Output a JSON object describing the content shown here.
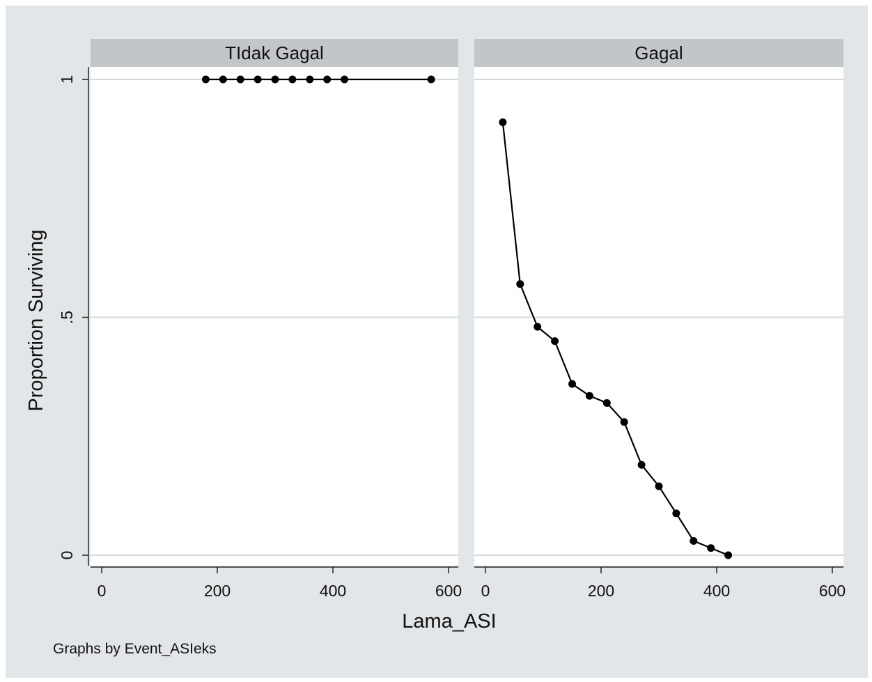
{
  "chart_data": {
    "type": "line",
    "ylabel": "Proportion Surviving",
    "xlabel": "Lama_ASI",
    "note": "Graphs by Event_ASIeks",
    "xlim": [
      0,
      600
    ],
    "ylim": [
      0,
      1
    ],
    "xticks": [
      "0",
      "200",
      "400",
      "600"
    ],
    "yticks": [
      "0",
      ".5",
      "1"
    ],
    "ytick_values": [
      0,
      0.5,
      1
    ],
    "xtick_values": [
      0,
      200,
      400,
      600
    ],
    "grid": true,
    "marker": "circle",
    "line_color": "#000000",
    "panel_strip_color": "#c3c6c9",
    "panels": [
      {
        "title": "TIdak Gagal",
        "x": [
          180,
          210,
          240,
          270,
          300,
          330,
          360,
          390,
          420,
          570
        ],
        "y": [
          1,
          1,
          1,
          1,
          1,
          1,
          1,
          1,
          1,
          1
        ]
      },
      {
        "title": "Gagal",
        "x": [
          30,
          60,
          90,
          120,
          150,
          180,
          210,
          240,
          270,
          300,
          330,
          360,
          390,
          420
        ],
        "y": [
          0.91,
          0.57,
          0.48,
          0.45,
          0.36,
          0.335,
          0.32,
          0.28,
          0.19,
          0.145,
          0.088,
          0.03,
          0.015,
          0
        ]
      }
    ]
  }
}
